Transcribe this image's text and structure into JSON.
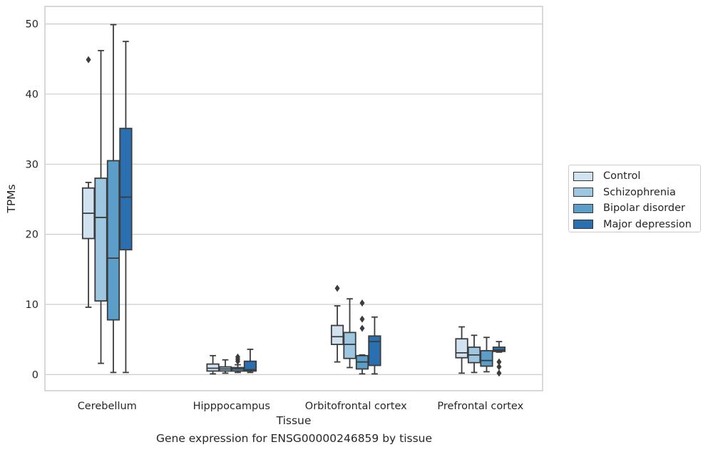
{
  "chart_data": {
    "type": "box",
    "xlabel": "Tissue",
    "ylabel": "TPMs",
    "ylim": [
      -2.3,
      52.5
    ],
    "yticks": [
      0,
      10,
      20,
      30,
      40,
      50
    ],
    "grid": "horizontal",
    "legend_position": "right",
    "categories": [
      "Cerebellum",
      "Hipppocampus",
      "Orbitofrontal cortex",
      "Prefrontal cortex"
    ],
    "series": [
      {
        "name": "Control",
        "color": "#d1e2f1",
        "boxes": [
          {
            "whislo": 9.6,
            "q1": 19.4,
            "med": 23.0,
            "q3": 26.6,
            "whishi": 27.4,
            "fliers": [
              44.9
            ]
          },
          {
            "whislo": 0.1,
            "q1": 0.5,
            "med": 0.9,
            "q3": 1.5,
            "whishi": 2.7,
            "fliers": []
          },
          {
            "whislo": 1.8,
            "q1": 4.3,
            "med": 5.4,
            "q3": 7.0,
            "whishi": 9.8,
            "fliers": [
              12.3
            ]
          },
          {
            "whislo": 0.2,
            "q1": 2.4,
            "med": 3.1,
            "q3": 5.1,
            "whishi": 6.8,
            "fliers": []
          }
        ]
      },
      {
        "name": "Schizophrenia",
        "color": "#9dc6e0",
        "boxes": [
          {
            "whislo": 1.6,
            "q1": 10.5,
            "med": 22.4,
            "q3": 28.0,
            "whishi": 46.2,
            "fliers": []
          },
          {
            "whislo": 0.2,
            "q1": 0.5,
            "med": 0.8,
            "q3": 1.1,
            "whishi": 2.1,
            "fliers": []
          },
          {
            "whislo": 1.0,
            "q1": 2.3,
            "med": 4.3,
            "q3": 6.0,
            "whishi": 10.8,
            "fliers": []
          },
          {
            "whislo": 0.3,
            "q1": 1.7,
            "med": 2.8,
            "q3": 3.9,
            "whishi": 5.6,
            "fliers": []
          }
        ]
      },
      {
        "name": "Bipolar disorder",
        "color": "#5a9ec9",
        "boxes": [
          {
            "whislo": 0.3,
            "q1": 7.8,
            "med": 16.6,
            "q3": 30.5,
            "whishi": 49.9,
            "fliers": []
          },
          {
            "whislo": 0.3,
            "q1": 0.5,
            "med": 0.8,
            "q3": 1.0,
            "whishi": 1.4,
            "fliers": [
              1.9,
              2.2,
              2.5
            ]
          },
          {
            "whislo": 0.1,
            "q1": 0.8,
            "med": 1.8,
            "q3": 2.7,
            "whishi": 2.8,
            "fliers": [
              6.6,
              7.9,
              10.2
            ]
          },
          {
            "whislo": 0.4,
            "q1": 1.2,
            "med": 2.0,
            "q3": 3.4,
            "whishi": 5.3,
            "fliers": []
          }
        ]
      },
      {
        "name": "Major depression",
        "color": "#2a6fb0",
        "boxes": [
          {
            "whislo": 0.3,
            "q1": 17.8,
            "med": 25.3,
            "q3": 35.1,
            "whishi": 47.5,
            "fliers": []
          },
          {
            "whislo": 0.3,
            "q1": 0.5,
            "med": 0.7,
            "q3": 1.9,
            "whishi": 3.6,
            "fliers": []
          },
          {
            "whislo": 0.1,
            "q1": 1.3,
            "med": 4.7,
            "q3": 5.5,
            "whishi": 8.2,
            "fliers": []
          },
          {
            "whislo": 3.2,
            "q1": 3.3,
            "med": 3.5,
            "q3": 3.9,
            "whishi": 4.7,
            "fliers": [
              0.2,
              1.1,
              1.8
            ]
          }
        ]
      }
    ]
  },
  "caption": "Gene expression for ENSG00000246859 by tissue"
}
